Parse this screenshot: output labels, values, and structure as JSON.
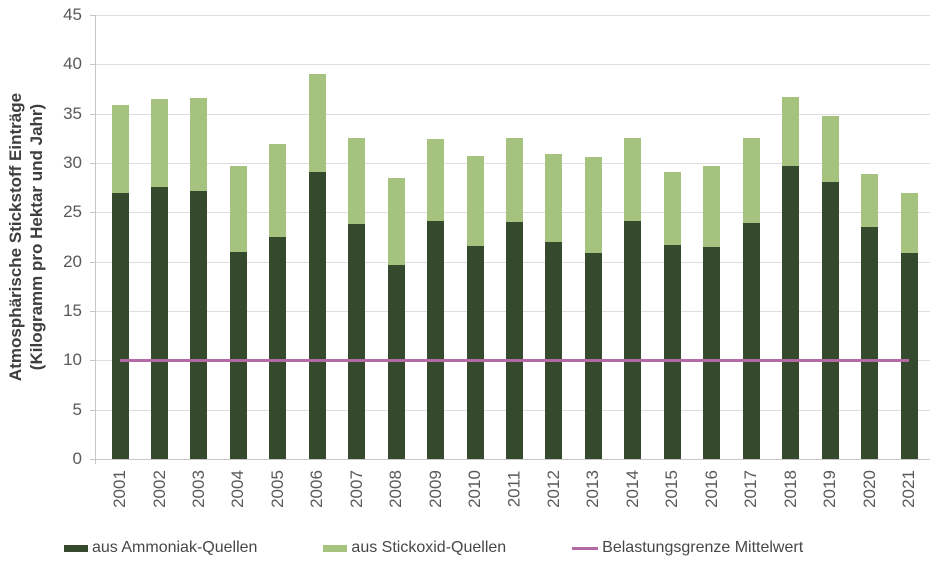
{
  "chart": {
    "y_axis_title_line1": "Atmosphärische Stickstoff Einträge",
    "y_axis_title_line2": "(Kilogramm  pro Hektar und Jahr)"
  },
  "legend": {
    "items": [
      {
        "label": "aus Ammoniak-Quellen",
        "color": "#35492c",
        "marker": "rect"
      },
      {
        "label": "aus Stickoxid-Quellen",
        "color": "#a6c27f",
        "marker": "rect"
      },
      {
        "label": "Belastungsgrenze Mittelwert",
        "color": "#b369a4",
        "marker": "line"
      }
    ]
  },
  "colors": {
    "ammoniak": "#35492c",
    "stickoxid": "#a6c27f",
    "threshold": "#b369a4",
    "gridline": "#dedede",
    "axis": "#c6c6c6",
    "tick_label": "#595959"
  },
  "chart_data": {
    "type": "bar",
    "stacked": true,
    "title": "",
    "xlabel": "",
    "ylabel": "Atmosphärische Stickstoff Einträge (Kilogramm pro Hektar und Jahr)",
    "ylim": [
      0,
      45
    ],
    "yticks": [
      0,
      5,
      10,
      15,
      20,
      25,
      30,
      35,
      40,
      45
    ],
    "grid": true,
    "legend_position": "bottom",
    "categories": [
      "2001",
      "2002",
      "2003",
      "2004",
      "2005",
      "2006",
      "2007",
      "2008",
      "2009",
      "2010",
      "2011",
      "2012",
      "2013",
      "2014",
      "2015",
      "2016",
      "2017",
      "2018",
      "2019",
      "2020",
      "2021"
    ],
    "series": [
      {
        "name": "aus Ammoniak-Quellen",
        "color": "#35492c",
        "values": [
          27.0,
          27.6,
          27.2,
          21.0,
          22.5,
          29.1,
          23.8,
          19.7,
          24.1,
          21.6,
          24.0,
          22.0,
          20.9,
          24.1,
          21.7,
          21.5,
          23.9,
          29.7,
          28.1,
          23.5,
          20.9
        ]
      },
      {
        "name": "aus Stickoxid-Quellen",
        "color": "#a6c27f",
        "values": [
          8.9,
          8.9,
          9.4,
          8.7,
          9.4,
          9.9,
          8.7,
          8.8,
          8.3,
          9.1,
          8.5,
          8.9,
          9.7,
          8.4,
          7.4,
          8.2,
          8.6,
          7.0,
          6.7,
          5.4,
          6.1
        ]
      }
    ],
    "line_series": {
      "name": "Belastungsgrenze Mittelwert",
      "color": "#b369a4",
      "value": 10
    }
  }
}
